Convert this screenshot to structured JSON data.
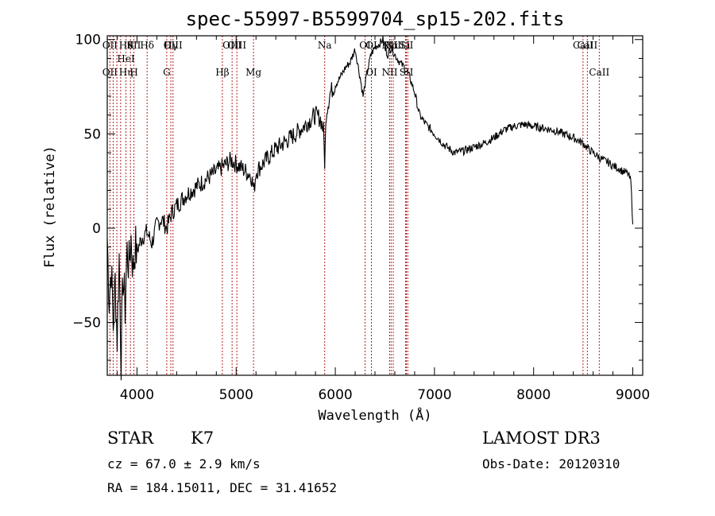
{
  "chart_data": {
    "type": "line",
    "title": "spec-55997-B5599704_sp15-202.fits",
    "xlabel": "Wavelength (Å)",
    "ylabel": "Flux (relative)",
    "xlim": [
      3700,
      9100
    ],
    "ylim": [
      -78,
      102
    ],
    "x_ticks": [
      4000,
      5000,
      6000,
      7000,
      8000,
      9000
    ],
    "y_ticks": [
      -50,
      0,
      50,
      100
    ],
    "grid": false,
    "line_color": "#000000",
    "marker_color": "#b22222",
    "series": [
      {
        "x": [
          3700,
          3720,
          3740,
          3760,
          3780,
          3800,
          3820,
          3840,
          3860,
          3880,
          3900,
          3920,
          3940,
          3960,
          3980,
          4000,
          4050,
          4100,
          4150,
          4200,
          4250,
          4300,
          4350,
          4400,
          4450,
          4500,
          4550,
          4600,
          4650,
          4700,
          4750,
          4800,
          4850,
          4900,
          4950,
          5000,
          5050,
          5100,
          5150,
          5180,
          5200,
          5250,
          5300,
          5400,
          5500,
          5600,
          5700,
          5800,
          5850,
          5880,
          5893,
          5910,
          5950,
          6000,
          6050,
          6100,
          6150,
          6200,
          6250,
          6280,
          6300,
          6330,
          6360,
          6400,
          6450,
          6480,
          6500,
          6530,
          6560,
          6600,
          6650,
          6700,
          6750,
          6800,
          6850,
          6900,
          6950,
          7000,
          7050,
          7100,
          7150,
          7200,
          7300,
          7400,
          7500,
          7600,
          7700,
          7800,
          7900,
          8000,
          8100,
          8200,
          8300,
          8400,
          8500,
          8550,
          8600,
          8650,
          8700,
          8750,
          8800,
          8850,
          8900,
          8950,
          8980,
          9000
        ],
        "y": [
          -5,
          -38,
          -20,
          -52,
          -28,
          -58,
          -15,
          -68,
          -25,
          -42,
          -12,
          -20,
          -5,
          -22,
          -10,
          -12,
          -5,
          -2,
          -8,
          2,
          5,
          0,
          8,
          12,
          15,
          18,
          20,
          22,
          24,
          26,
          28,
          30,
          32,
          34,
          36,
          34,
          32,
          30,
          28,
          20,
          30,
          33,
          36,
          42,
          46,
          50,
          55,
          60,
          58,
          52,
          35,
          62,
          72,
          76,
          80,
          85,
          88,
          95,
          80,
          70,
          76,
          85,
          92,
          96,
          98,
          100,
          95,
          92,
          96,
          92,
          88,
          85,
          80,
          72,
          60,
          56,
          53,
          50,
          47,
          44,
          42,
          40,
          41,
          43,
          45,
          48,
          52,
          54,
          55,
          54,
          53,
          52,
          50,
          48,
          45,
          42,
          40,
          38,
          36,
          35,
          33,
          32,
          30,
          29,
          25,
          2
        ]
      }
    ],
    "line_markers": [
      {
        "wl": 3727,
        "top": [
          "OII"
        ],
        "bottom": [
          "OII"
        ]
      },
      {
        "wl": 3760,
        "top": [],
        "bottom": []
      },
      {
        "wl": 3797,
        "top": [],
        "bottom": []
      },
      {
        "wl": 3835,
        "top": [],
        "bottom": []
      },
      {
        "wl": 3889,
        "top": [
          "Hθ",
          "HeI"
        ],
        "bottom": [
          "Hη"
        ]
      },
      {
        "wl": 3934,
        "top": [
          "K"
        ],
        "bottom": []
      },
      {
        "wl": 3969,
        "top": [
          "SII"
        ],
        "bottom": [
          "H"
        ]
      },
      {
        "wl": 4102,
        "top": [
          "Hδ"
        ],
        "bottom": []
      },
      {
        "wl": 4300,
        "top": [],
        "bottom": [
          "G"
        ]
      },
      {
        "wl": 4341,
        "top": [
          "Hγ"
        ],
        "bottom": []
      },
      {
        "wl": 4363,
        "top": [
          "OIII"
        ],
        "bottom": []
      },
      {
        "wl": 4861,
        "top": [],
        "bottom": [
          "Hβ"
        ]
      },
      {
        "wl": 4959,
        "top": [
          "OIII"
        ],
        "bottom": []
      },
      {
        "wl": 5007,
        "top": [
          "OIII"
        ],
        "bottom": []
      },
      {
        "wl": 5175,
        "top": [],
        "bottom": [
          "Mg"
        ]
      },
      {
        "wl": 5893,
        "top": [
          "Na"
        ],
        "bottom": []
      },
      {
        "wl": 6300,
        "top": [
          "OI"
        ],
        "bottom": []
      },
      {
        "wl": 6364,
        "top": [
          "OI"
        ],
        "bottom": [
          "OI"
        ]
      },
      {
        "wl": 6548,
        "top": [
          "NII"
        ],
        "bottom": [
          "NII"
        ]
      },
      {
        "wl": 6563,
        "top": [
          "Hα"
        ],
        "bottom": []
      },
      {
        "wl": 6584,
        "top": [
          "NII"
        ],
        "bottom": []
      },
      {
        "wl": 6708,
        "top": [
          "Li"
        ],
        "bottom": []
      },
      {
        "wl": 6717,
        "top": [
          "SII"
        ],
        "bottom": [
          "SII"
        ]
      },
      {
        "wl": 6731,
        "top": [],
        "bottom": []
      },
      {
        "wl": 8498,
        "top": [
          "CaII"
        ],
        "bottom": []
      },
      {
        "wl": 8542,
        "top": [
          "CaII"
        ],
        "bottom": []
      },
      {
        "wl": 8662,
        "top": [],
        "bottom": [
          "CaII"
        ]
      }
    ]
  },
  "info": {
    "class_label": "STAR",
    "subclass_label": "K7",
    "survey_label": "LAMOST DR3",
    "redshift_text": "cz = 67.0 ± 2.9 km/s",
    "obs_date_text": "Obs-Date: 20120310",
    "coords_text": "RA = 184.15011, DEC =  31.41652"
  }
}
